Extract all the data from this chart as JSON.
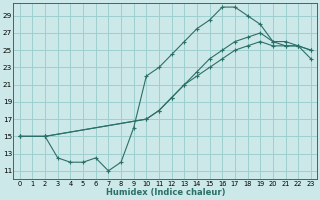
{
  "xlabel": "Humidex (Indice chaleur)",
  "bg_color": "#cce8e8",
  "line_color": "#2a7068",
  "grid_color": "#9fcfcf",
  "xlim": [
    -0.5,
    23.5
  ],
  "ylim": [
    10,
    30.5
  ],
  "xticks": [
    0,
    1,
    2,
    3,
    4,
    5,
    6,
    7,
    8,
    9,
    10,
    11,
    12,
    13,
    14,
    15,
    16,
    17,
    18,
    19,
    20,
    21,
    22,
    23
  ],
  "yticks": [
    11,
    13,
    15,
    17,
    19,
    21,
    23,
    25,
    27,
    29
  ],
  "line1_x": [
    0,
    2,
    3,
    4,
    5,
    6,
    7,
    8,
    9,
    10,
    11,
    12,
    13,
    14,
    15,
    16,
    17,
    18,
    19,
    20,
    21,
    22,
    23
  ],
  "line1_y": [
    15,
    15,
    12.5,
    12,
    12,
    12.5,
    11,
    12,
    16,
    22,
    23,
    24.5,
    26,
    27.5,
    28.5,
    30,
    30,
    29,
    28,
    26,
    26,
    25.5,
    25
  ],
  "line2_x": [
    0,
    2,
    10,
    11,
    12,
    13,
    14,
    15,
    16,
    17,
    18,
    19,
    20,
    21,
    22,
    23
  ],
  "line2_y": [
    15,
    15,
    17,
    18,
    19.5,
    21,
    22.5,
    24,
    25,
    26,
    26.5,
    27,
    26,
    25.5,
    25.5,
    25
  ],
  "line3_x": [
    0,
    2,
    10,
    11,
    12,
    13,
    14,
    15,
    16,
    17,
    18,
    19,
    20,
    21,
    22,
    23
  ],
  "line3_y": [
    15,
    15,
    17,
    18,
    19.5,
    21,
    22,
    23,
    24,
    25,
    25.5,
    26,
    25.5,
    25.5,
    25.5,
    24
  ]
}
